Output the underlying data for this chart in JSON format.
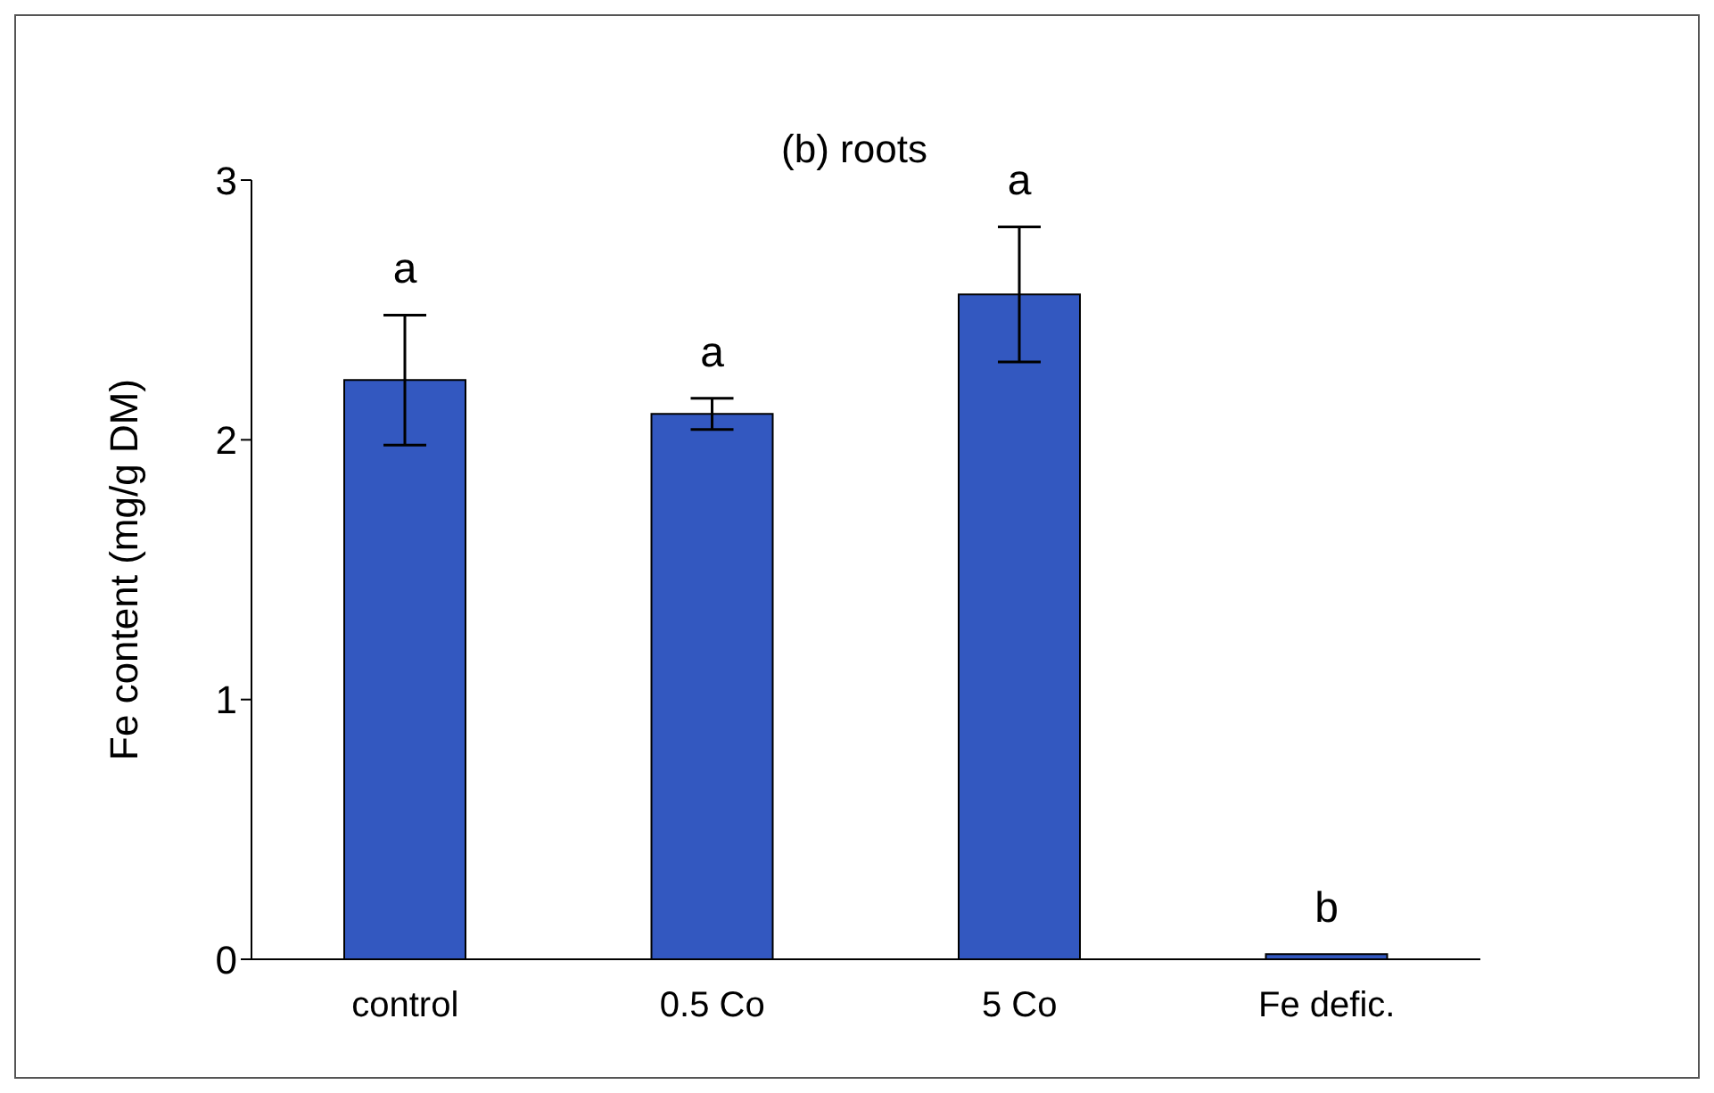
{
  "chart_data": {
    "type": "bar",
    "title": "(b) roots",
    "ylabel": "Fe content (mg/g DM)",
    "categories": [
      "control",
      "0.5 Co",
      "5 Co",
      "Fe defic."
    ],
    "values": [
      2.23,
      2.1,
      2.56,
      0.02
    ],
    "errors": [
      0.25,
      0.06,
      0.26,
      null
    ],
    "color": "#3358c0",
    "ylim": [
      0,
      3
    ],
    "yticks": [
      0,
      1,
      2,
      3
    ],
    "annotations": [
      "a",
      "a",
      "a",
      "b"
    ]
  }
}
